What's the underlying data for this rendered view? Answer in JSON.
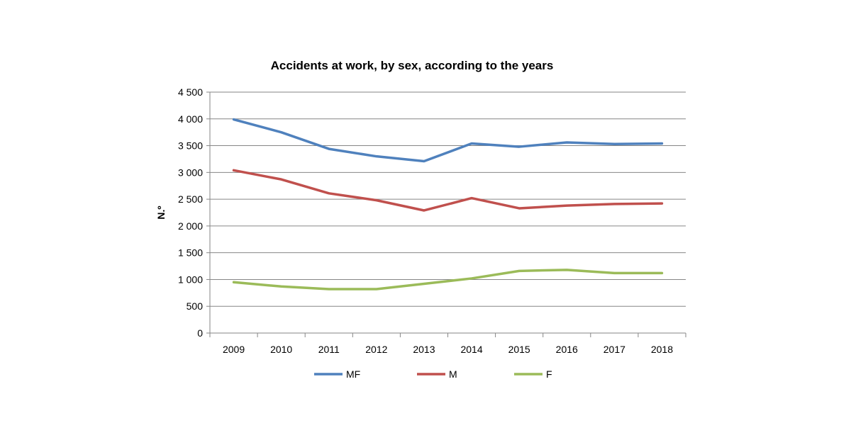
{
  "chart_data": {
    "type": "line",
    "title": "Accidents at work, by sex, according to the years",
    "xlabel": "",
    "ylabel": "N.º",
    "categories": [
      "2009",
      "2010",
      "2011",
      "2012",
      "2013",
      "2014",
      "2015",
      "2016",
      "2017",
      "2018"
    ],
    "ylim": [
      0,
      4500
    ],
    "yticks": [
      0,
      500,
      1000,
      1500,
      2000,
      2500,
      3000,
      3500,
      4000,
      4500
    ],
    "ytick_labels": [
      "0",
      "500",
      "1 000",
      "1 500",
      "2 000",
      "2 500",
      "3 000",
      "3 500",
      "4 000",
      "4 500"
    ],
    "grid": true,
    "legend_position": "bottom",
    "series": [
      {
        "name": "MF",
        "color": "#4F81BD",
        "values": [
          3990,
          3750,
          3440,
          3300,
          3210,
          3540,
          3480,
          3560,
          3530,
          3540
        ]
      },
      {
        "name": "M",
        "color": "#C0504D",
        "values": [
          3040,
          2870,
          2610,
          2480,
          2290,
          2520,
          2330,
          2380,
          2410,
          2420
        ]
      },
      {
        "name": "F",
        "color": "#9BBB59",
        "values": [
          950,
          870,
          820,
          820,
          920,
          1020,
          1160,
          1180,
          1120,
          1120
        ]
      }
    ]
  }
}
